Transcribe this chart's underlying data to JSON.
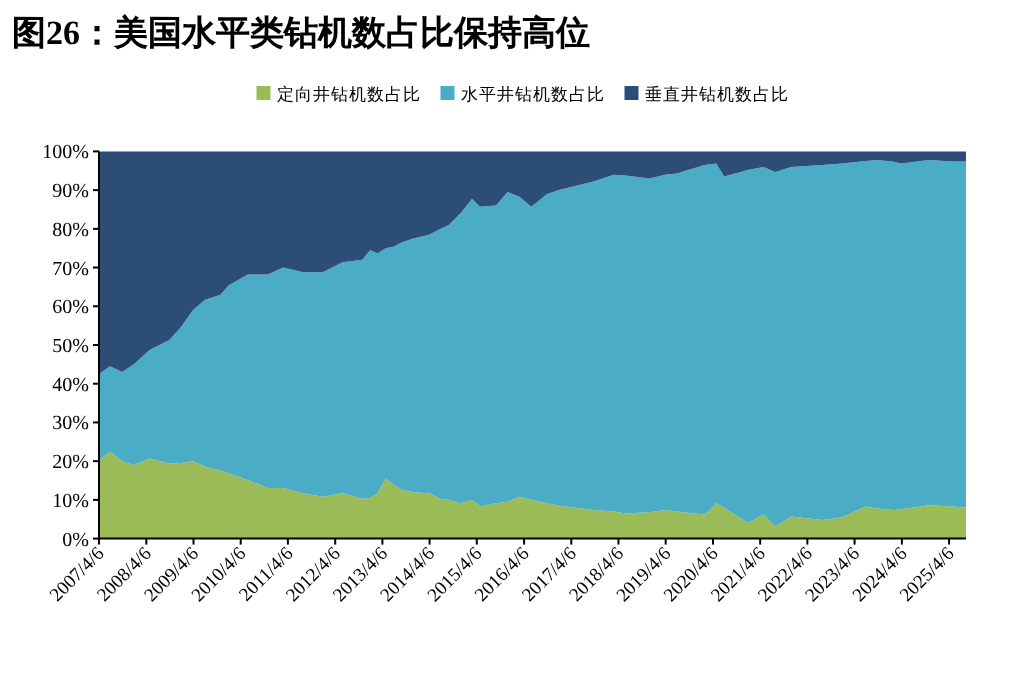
{
  "chart_data": {
    "type": "area",
    "stacked": true,
    "title": "图26：美国水平类钻机数占比保持高位",
    "legend": "top",
    "x": [
      "2007-04-06",
      "2007-07-01",
      "2007-10-01",
      "2008-01-01",
      "2008-05-01",
      "2008-10-01",
      "2009-01-01",
      "2009-04-01",
      "2009-07-01",
      "2009-11-01",
      "2010-01-01",
      "2010-06-01",
      "2010-11-01",
      "2011-03-01",
      "2011-08-01",
      "2012-01-01",
      "2012-06-01",
      "2012-11-01",
      "2013-01-01",
      "2013-03-01",
      "2013-05-01",
      "2013-07-01",
      "2013-09-01",
      "2013-12-01",
      "2014-04-01",
      "2014-07-01",
      "2014-09-01",
      "2014-12-01",
      "2015-03-01",
      "2015-05-01",
      "2015-09-01",
      "2015-12-01",
      "2016-03-01",
      "2016-06-01",
      "2016-10-01",
      "2017-01-01",
      "2017-10-01",
      "2018-03-01",
      "2018-06-01",
      "2018-12-01",
      "2019-04-01",
      "2019-07-01",
      "2020-02-01",
      "2020-05-01",
      "2020-07-01",
      "2021-01-01",
      "2021-05-01",
      "2021-08-01",
      "2021-12-01",
      "2022-08-01",
      "2023-01-01",
      "2023-07-01",
      "2023-10-01",
      "2024-02-01",
      "2024-04-01",
      "2024-11-01",
      "2025-05-01",
      "2025-08-15"
    ],
    "series": [
      {
        "name": "定向井钻机数占比",
        "color": "#9bbb59",
        "values": [
          20.3,
          22.4,
          20,
          19,
          20.7,
          19.4,
          19.5,
          20,
          18.6,
          17.5,
          16.9,
          15.1,
          13.1,
          13.1,
          11.7,
          10.8,
          11.7,
          10.3,
          10.5,
          11.7,
          15.5,
          14,
          12.6,
          12,
          11.7,
          10.3,
          10,
          9.1,
          10,
          8.3,
          9.1,
          9.5,
          10.8,
          10,
          9.1,
          8.5,
          7.4,
          7,
          6.5,
          6.8,
          7.4,
          7,
          6.2,
          9.1,
          8,
          4,
          6.2,
          3.1,
          5.7,
          4.8,
          5.5,
          8.3,
          7.8,
          7.4,
          7.6,
          8.6,
          8.3,
          8
        ]
      },
      {
        "name": "水平井钻机数占比",
        "color": "#4bacc6",
        "values": [
          22.2,
          22.1,
          23,
          26,
          28,
          31.9,
          35.2,
          39,
          43,
          45.5,
          48.5,
          53.1,
          55.1,
          56.9,
          57.1,
          58,
          59.7,
          61.7,
          64,
          62,
          59.5,
          61.4,
          63.9,
          65.5,
          66.8,
          69.7,
          71,
          74.9,
          77.8,
          77.4,
          76.9,
          80,
          77.5,
          75.7,
          79.9,
          81.5,
          84.9,
          87,
          87.3,
          86.2,
          86.6,
          87.3,
          90.3,
          87.8,
          85.5,
          91.2,
          89.8,
          91.6,
          90.3,
          91.7,
          91.4,
          89.2,
          90,
          89.9,
          89.3,
          89.2,
          89.1,
          89.4
        ]
      },
      {
        "name": "垂直井钻机数占比",
        "color": "#2c4d75",
        "values": [
          57.5,
          55.5,
          57,
          55,
          51.3,
          48.7,
          45.3,
          41,
          38.4,
          37,
          34.6,
          31.8,
          31.8,
          30,
          31.2,
          31.2,
          28.6,
          28,
          25.5,
          26.3,
          25,
          24.6,
          23.5,
          22.5,
          21.5,
          20,
          19,
          16,
          12.2,
          14.3,
          14,
          10.5,
          11.7,
          14.3,
          11,
          10,
          7.7,
          6,
          6.2,
          7,
          6,
          5.7,
          3.5,
          3.1,
          6.5,
          4.8,
          4,
          5.3,
          4,
          3.5,
          3.1,
          2.5,
          2.2,
          2.7,
          3.1,
          2.2,
          2.6,
          2.6
        ]
      }
    ],
    "xlim": [
      "2007-04-06",
      "2025-08-15"
    ],
    "xticks": [
      {
        "value": "2007-04-06",
        "label": "2007/4/6"
      },
      {
        "value": "2008-04-06",
        "label": "2008/4/6"
      },
      {
        "value": "2009-04-06",
        "label": "2009/4/6"
      },
      {
        "value": "2010-04-06",
        "label": "2010/4/6"
      },
      {
        "value": "2011-04-06",
        "label": "2011/4/6"
      },
      {
        "value": "2012-04-06",
        "label": "2012/4/6"
      },
      {
        "value": "2013-04-06",
        "label": "2013/4/6"
      },
      {
        "value": "2014-04-06",
        "label": "2014/4/6"
      },
      {
        "value": "2015-04-06",
        "label": "2015/4/6"
      },
      {
        "value": "2016-04-06",
        "label": "2016/4/6"
      },
      {
        "value": "2017-04-06",
        "label": "2017/4/6"
      },
      {
        "value": "2018-04-06",
        "label": "2018/4/6"
      },
      {
        "value": "2019-04-06",
        "label": "2019/4/6"
      },
      {
        "value": "2020-04-06",
        "label": "2020/4/6"
      },
      {
        "value": "2021-04-06",
        "label": "2021/4/6"
      },
      {
        "value": "2022-04-06",
        "label": "2022/4/6"
      },
      {
        "value": "2023-04-06",
        "label": "2023/4/6"
      },
      {
        "value": "2024-04-06",
        "label": "2024/4/6"
      },
      {
        "value": "2025-04-06",
        "label": "2025/4/6"
      }
    ],
    "ylim": [
      0,
      100
    ],
    "yticks": [
      {
        "value": 0,
        "label": "0%"
      },
      {
        "value": 10,
        "label": "10%"
      },
      {
        "value": 20,
        "label": "20%"
      },
      {
        "value": 30,
        "label": "30%"
      },
      {
        "value": 40,
        "label": "40%"
      },
      {
        "value": 50,
        "label": "50%"
      },
      {
        "value": 60,
        "label": "60%"
      },
      {
        "value": 70,
        "label": "70%"
      },
      {
        "value": 80,
        "label": "80%"
      },
      {
        "value": 90,
        "label": "90%"
      },
      {
        "value": 100,
        "label": "100%"
      }
    ]
  }
}
